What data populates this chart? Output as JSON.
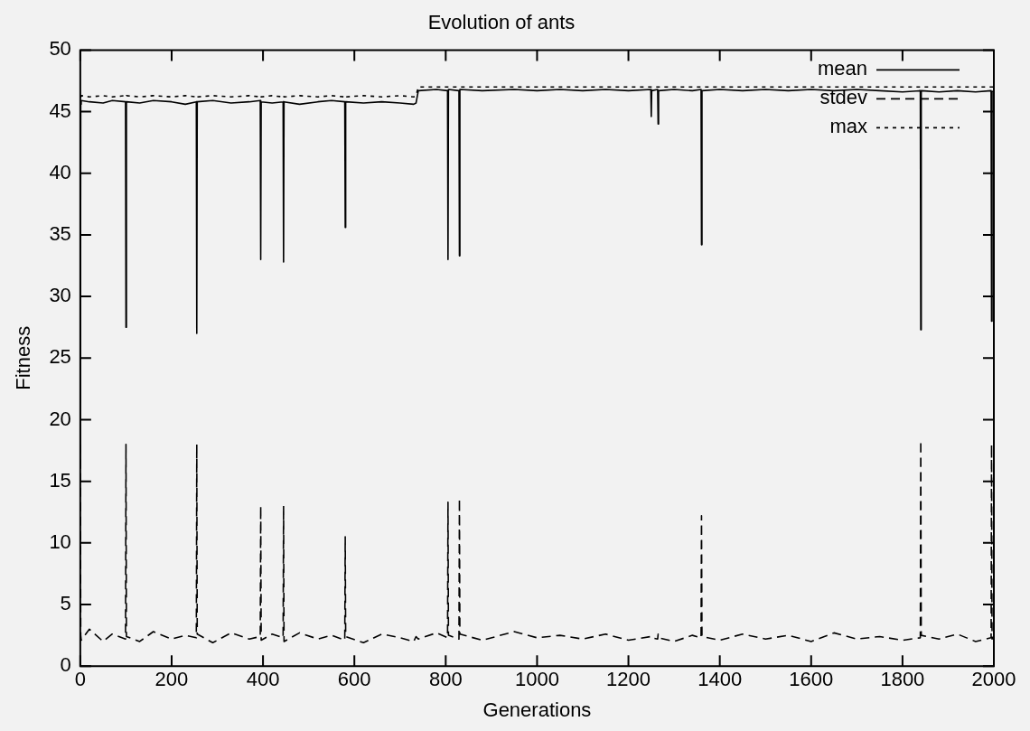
{
  "chart_data": {
    "type": "line",
    "title": "Evolution of ants",
    "xlabel": "Generations",
    "ylabel": "Fitness",
    "x": [
      0,
      1,
      2,
      20,
      50,
      70,
      99,
      100,
      101,
      130,
      160,
      200,
      230,
      254,
      255,
      256,
      290,
      330,
      370,
      394,
      395,
      396,
      420,
      444,
      445,
      446,
      480,
      520,
      550,
      579,
      580,
      581,
      620,
      660,
      700,
      730,
      735,
      740,
      780,
      804,
      805,
      806,
      829,
      830,
      831,
      880,
      950,
      1000,
      1050,
      1100,
      1150,
      1200,
      1249,
      1250,
      1251,
      1264,
      1265,
      1266,
      1300,
      1340,
      1359,
      1360,
      1361,
      1400,
      1450,
      1500,
      1550,
      1600,
      1650,
      1700,
      1750,
      1800,
      1839,
      1840,
      1841,
      1880,
      1920,
      1960,
      1994,
      1995,
      1996,
      2000
    ],
    "series": [
      {
        "name": "mean",
        "color": "#000000",
        "line_style": "solid",
        "values": [
          16,
          45.6,
          45.9,
          45.8,
          45.7,
          45.9,
          45.8,
          27.5,
          45.8,
          45.7,
          45.9,
          45.8,
          45.6,
          45.8,
          27,
          45.8,
          45.9,
          45.7,
          45.8,
          45.9,
          33,
          45.8,
          45.7,
          45.8,
          32.8,
          45.8,
          45.6,
          45.8,
          45.9,
          45.8,
          35.6,
          45.8,
          45.7,
          45.8,
          45.7,
          45.6,
          45.7,
          46.7,
          46.8,
          46.7,
          33,
          46.8,
          46.7,
          33.3,
          46.8,
          46.7,
          46.8,
          46.7,
          46.8,
          46.7,
          46.8,
          46.7,
          46.8,
          44.6,
          46.7,
          46.8,
          44,
          46.7,
          46.8,
          46.7,
          46.8,
          34.2,
          46.7,
          46.8,
          46.7,
          46.8,
          46.7,
          46.8,
          46.7,
          46.8,
          46.7,
          46.6,
          46.7,
          27.3,
          46.7,
          46.6,
          46.7,
          46.6,
          46.7,
          28,
          46.6,
          46.7
        ]
      },
      {
        "name": "stdev",
        "color": "#000000",
        "line_style": "dashed",
        "values": [
          18,
          2.5,
          2.1,
          3.0,
          2.0,
          2.6,
          2.2,
          18,
          2.4,
          2.0,
          2.8,
          2.2,
          2.5,
          2.3,
          18,
          2.6,
          1.9,
          2.7,
          2.2,
          2.4,
          13,
          2.1,
          2.6,
          2.3,
          13,
          2.0,
          2.7,
          2.2,
          2.5,
          2.1,
          10.5,
          2.4,
          1.9,
          2.6,
          2.3,
          2.0,
          2.4,
          2.2,
          2.7,
          2.3,
          13.3,
          2.5,
          2.2,
          13.6,
          2.6,
          2.1,
          2.8,
          2.3,
          2.5,
          2.2,
          2.6,
          2.1,
          2.4,
          2.4,
          2.3,
          2.2,
          2.6,
          2.3,
          2.0,
          2.5,
          2.3,
          12.2,
          2.4,
          2.1,
          2.6,
          2.2,
          2.5,
          2.0,
          2.7,
          2.2,
          2.4,
          2.1,
          2.3,
          18.3,
          2.5,
          2.2,
          2.6,
          2.0,
          2.3,
          18,
          2.2,
          2.4
        ]
      },
      {
        "name": "max",
        "color": "#000000",
        "line_style": "dotted",
        "values": [
          46.2,
          46.2,
          46.3,
          46.2,
          46.3,
          46.2,
          46.3,
          46.2,
          46.3,
          46.2,
          46.3,
          46.2,
          46.3,
          46.2,
          46.3,
          46.2,
          46.3,
          46.2,
          46.3,
          46.2,
          46.3,
          46.2,
          46.3,
          46.2,
          46.3,
          46.2,
          46.3,
          46.2,
          46.3,
          46.2,
          46.3,
          46.2,
          46.3,
          46.2,
          46.3,
          46.2,
          46.3,
          47.0,
          47.0,
          47.0,
          47.0,
          47.0,
          47.0,
          47.0,
          47.0,
          47.0,
          47.0,
          47.0,
          47.0,
          47.0,
          47.0,
          47.0,
          47.0,
          47.0,
          47.0,
          47.0,
          47.0,
          47.0,
          47.0,
          47.0,
          47.0,
          47.0,
          47.0,
          47.0,
          47.0,
          47.0,
          47.0,
          47.0,
          47.0,
          47.0,
          47.0,
          47.0,
          47.0,
          47.0,
          47.0,
          47.0,
          47.0,
          47.0,
          47.0,
          47.0,
          47.0,
          47.0
        ]
      }
    ],
    "xlim": [
      0,
      2000
    ],
    "xticks": [
      0,
      200,
      400,
      600,
      800,
      1000,
      1200,
      1400,
      1600,
      1800,
      2000
    ],
    "ylim": [
      0,
      50
    ],
    "yticks": [
      0,
      5,
      10,
      15,
      20,
      25,
      30,
      35,
      40,
      45,
      50
    ],
    "grid": false,
    "legend": "top right",
    "marker": "none"
  }
}
